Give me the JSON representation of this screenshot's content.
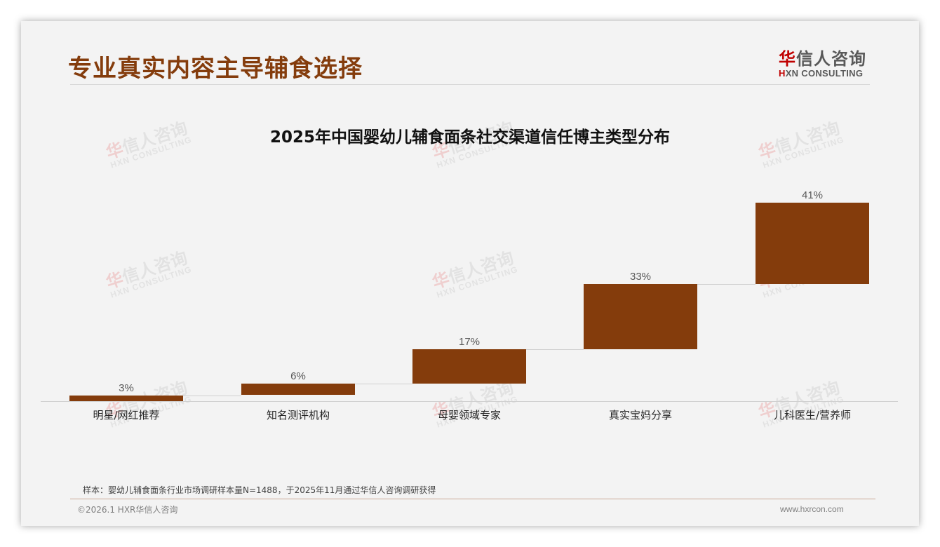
{
  "header": {
    "page_title": "专业真实内容主导辅食选择",
    "logo_cn_red": "华",
    "logo_cn_rest": "信人咨询",
    "logo_en_mark": "H",
    "logo_en_rest": "XN CONSULTING"
  },
  "watermark": {
    "cn_red": "华",
    "cn_rest": "信人咨询",
    "en": "HXN CONSULTING"
  },
  "chart_data": {
    "type": "waterfall",
    "title": "2025年中国婴幼儿辅食面条社交渠道信任博主类型分布",
    "categories": [
      "明星/网红推荐",
      "知名测评机构",
      "母婴领域专家",
      "真实宝妈分享",
      "儿科医生/营养师"
    ],
    "values": [
      3,
      6,
      17,
      33,
      41
    ],
    "value_labels": [
      "3%",
      "6%",
      "17%",
      "33%",
      "41%"
    ],
    "cumulative": [
      3,
      9,
      26,
      59,
      100
    ],
    "unit": "%",
    "xlabel": "",
    "ylabel": "",
    "ylim": [
      0,
      100
    ],
    "grid": false,
    "legend": "none",
    "bar_color": "#843c0c"
  },
  "footer": {
    "note": "样本：婴幼儿辅食面条行业市场调研样本量N=1488，于2025年11月通过华信人咨询调研获得",
    "copyright": "©2026.1 HXR华信人咨询",
    "website": "www.hxrcon.com"
  },
  "colors": {
    "accent": "#843c0c",
    "background": "#f3f3f3",
    "logo_red": "#c00000"
  }
}
